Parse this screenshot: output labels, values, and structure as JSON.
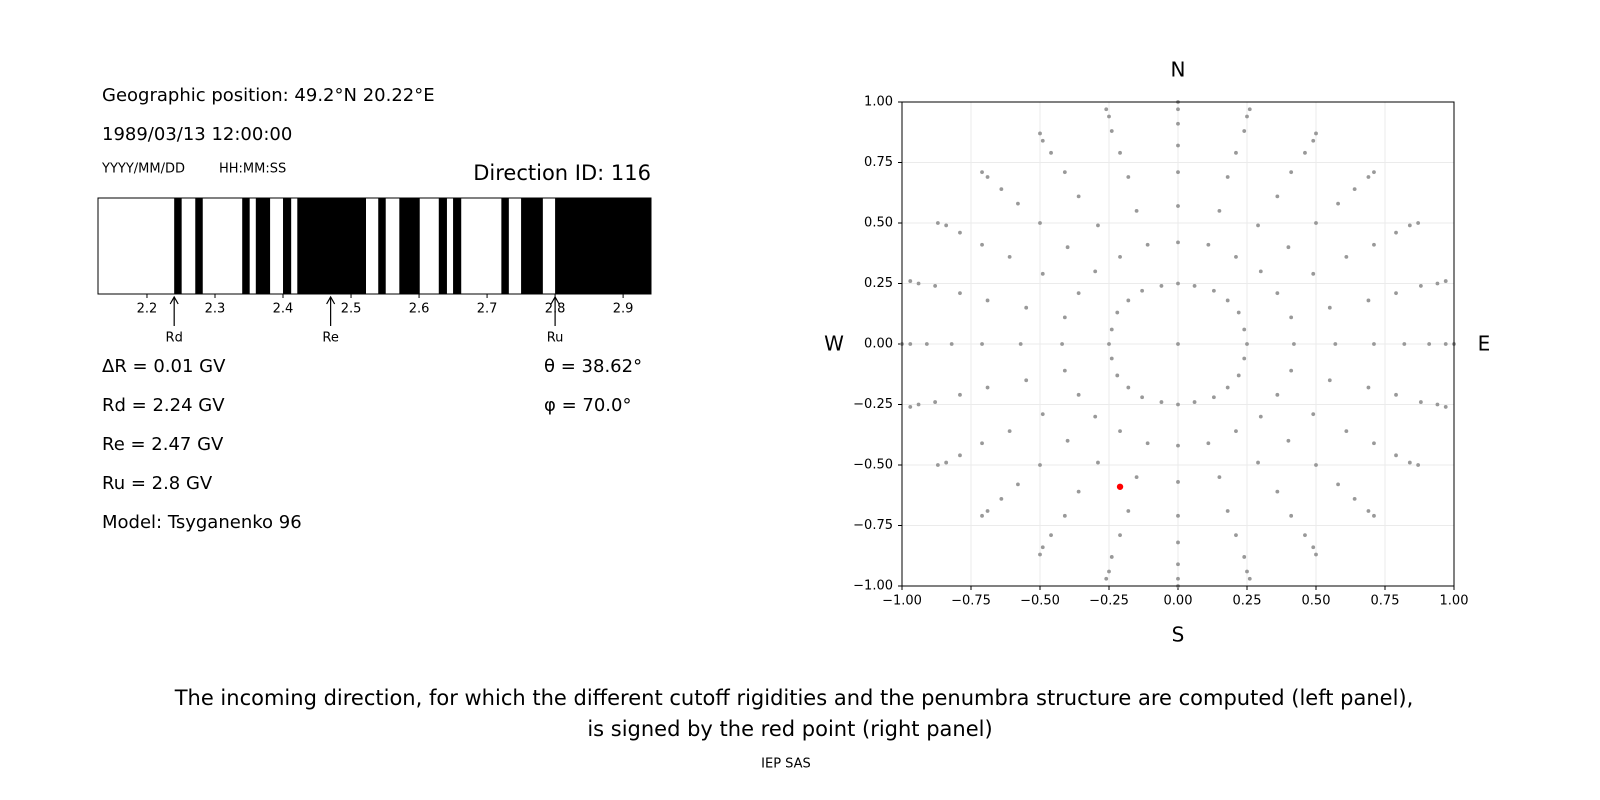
{
  "header": {
    "position": "Geographic position: 49.2°N 20.22°E",
    "datetime": "1989/03/13 12:00:00",
    "date_format": "YYYY/MM/DD",
    "time_format": "HH:MM:SS",
    "direction": "Direction ID: 116"
  },
  "parameters": {
    "delta_r": "ΔR = 0.01 GV",
    "rd": "Rd = 2.24 GV",
    "re": "Re = 2.47 GV",
    "ru": "Ru = 2.8 GV",
    "model": "Model: Tsyganenko 96",
    "theta": "θ = 38.62°",
    "phi": "φ = 70.0°"
  },
  "chart_data": [
    {
      "type": "penumbra",
      "xlim": [
        2.128,
        2.941
      ],
      "xticks": [
        2.2,
        2.3,
        2.4,
        2.5,
        2.6,
        2.7,
        2.8,
        2.9
      ],
      "color": "#000000",
      "bands": [
        [
          2.24,
          2.251
        ],
        [
          2.271,
          2.282
        ],
        [
          2.34,
          2.351
        ],
        [
          2.36,
          2.381
        ],
        [
          2.4,
          2.412
        ],
        [
          2.421,
          2.522
        ],
        [
          2.54,
          2.551
        ],
        [
          2.571,
          2.601
        ],
        [
          2.629,
          2.641
        ],
        [
          2.65,
          2.662
        ],
        [
          2.721,
          2.732
        ],
        [
          2.75,
          2.782
        ],
        [
          2.8,
          2.941
        ]
      ],
      "markers": [
        {
          "label": "Rd",
          "value": 2.24
        },
        {
          "label": "Re",
          "value": 2.47
        },
        {
          "label": "Ru",
          "value": 2.8
        }
      ]
    },
    {
      "type": "scatter",
      "xlim": [
        -1,
        1
      ],
      "ylim": [
        -1,
        1
      ],
      "grid": true,
      "xticks": [
        {
          "value": -1,
          "label": "−1.00"
        },
        {
          "value": -0.75,
          "label": "−0.75"
        },
        {
          "value": -0.5,
          "label": "−0.50"
        },
        {
          "value": -0.25,
          "label": "−0.25"
        },
        {
          "value": 0,
          "label": "0.00"
        },
        {
          "value": 0.25,
          "label": "0.25"
        },
        {
          "value": 0.5,
          "label": "0.50"
        },
        {
          "value": 0.75,
          "label": "0.75"
        },
        {
          "value": 1,
          "label": "1.00"
        }
      ],
      "yticks": [
        {
          "value": -1,
          "label": "−1.00"
        },
        {
          "value": -0.75,
          "label": "−0.75"
        },
        {
          "value": -0.5,
          "label": "−0.50"
        },
        {
          "value": -0.25,
          "label": "−0.25"
        },
        {
          "value": 0,
          "label": "0.00"
        },
        {
          "value": 0.25,
          "label": "0.25"
        },
        {
          "value": 0.5,
          "label": "0.50"
        },
        {
          "value": 0.75,
          "label": "0.75"
        },
        {
          "value": 1,
          "label": "1.00"
        }
      ],
      "compass": {
        "top": "N",
        "bottom": "S",
        "left": "W",
        "right": "E"
      },
      "series": [
        {
          "color": "#999999",
          "x": [
            0,
            0.25,
            0.24,
            0.22,
            0.18,
            0.13,
            0.06,
            0,
            -0.06,
            -0.13,
            -0.18,
            -0.22,
            -0.24,
            -0.25,
            -0.24,
            -0.22,
            -0.18,
            -0.13,
            -0.06,
            0,
            0.06,
            0.13,
            0.18,
            0.22,
            0.24,
            0.42,
            0.57,
            0.71,
            0.82,
            0.91,
            0.97,
            1,
            0.41,
            0.55,
            0.69,
            0.79,
            0.88,
            0.94,
            0.97,
            0.36,
            0.49,
            0.61,
            0.71,
            0.79,
            0.84,
            0.87,
            0.3,
            0.4,
            0.5,
            0.58,
            0.64,
            0.69,
            0.71,
            0.21,
            0.29,
            0.36,
            0.41,
            0.46,
            0.49,
            0.5,
            0.11,
            0.15,
            0.18,
            0.21,
            0.24,
            0.25,
            0.26,
            0,
            0,
            0,
            0,
            0,
            0,
            0,
            -0.11,
            -0.15,
            -0.18,
            -0.21,
            -0.24,
            -0.25,
            -0.26,
            -0.21,
            -0.29,
            -0.36,
            -0.41,
            -0.46,
            -0.49,
            -0.5,
            -0.3,
            -0.4,
            -0.5,
            -0.58,
            -0.64,
            -0.69,
            -0.71,
            -0.36,
            -0.49,
            -0.61,
            -0.71,
            -0.79,
            -0.84,
            -0.87,
            -0.41,
            -0.55,
            -0.69,
            -0.79,
            -0.88,
            -0.94,
            -0.97,
            -0.42,
            -0.57,
            -0.71,
            -0.82,
            -0.91,
            -0.97,
            -1,
            -0.41,
            -0.55,
            -0.69,
            -0.79,
            -0.88,
            -0.94,
            -0.97,
            -0.36,
            -0.49,
            -0.61,
            -0.71,
            -0.79,
            -0.84,
            -0.87,
            -0.3,
            -0.4,
            -0.5,
            -0.58,
            -0.64,
            -0.69,
            -0.71,
            -0.21,
            -0.29,
            -0.36,
            -0.41,
            -0.46,
            -0.49,
            -0.5,
            -0.11,
            -0.15,
            -0.18,
            -0.21,
            -0.24,
            -0.25,
            -0.26,
            0,
            0,
            0,
            0,
            0,
            0,
            0,
            0.11,
            0.15,
            0.18,
            0.21,
            0.24,
            0.25,
            0.26,
            0.21,
            0.29,
            0.36,
            0.41,
            0.46,
            0.49,
            0.5,
            0.3,
            0.4,
            0.5,
            0.58,
            0.64,
            0.69,
            0.71,
            0.36,
            0.49,
            0.61,
            0.71,
            0.79,
            0.84,
            0.87,
            0.41,
            0.55,
            0.69,
            0.79,
            0.88,
            0.94,
            0.97
          ],
          "values": [
            0,
            0,
            0.06,
            0.13,
            0.18,
            0.22,
            0.24,
            0.25,
            0.24,
            0.22,
            0.18,
            0.13,
            0.06,
            0,
            -0.06,
            -0.13,
            -0.18,
            -0.22,
            -0.24,
            -0.25,
            -0.24,
            -0.22,
            -0.18,
            -0.13,
            -0.06,
            0,
            0,
            0,
            0,
            0,
            0,
            0,
            0.11,
            0.15,
            0.18,
            0.21,
            0.24,
            0.25,
            0.26,
            0.21,
            0.29,
            0.36,
            0.41,
            0.46,
            0.49,
            0.5,
            0.3,
            0.4,
            0.5,
            0.58,
            0.64,
            0.69,
            0.71,
            0.36,
            0.49,
            0.61,
            0.71,
            0.79,
            0.84,
            0.87,
            0.41,
            0.55,
            0.69,
            0.79,
            0.88,
            0.94,
            0.97,
            0.42,
            0.57,
            0.71,
            0.82,
            0.91,
            0.97,
            1,
            0.41,
            0.55,
            0.69,
            0.79,
            0.88,
            0.94,
            0.97,
            0.36,
            0.49,
            0.61,
            0.71,
            0.79,
            0.84,
            0.87,
            0.3,
            0.4,
            0.5,
            0.58,
            0.64,
            0.69,
            0.71,
            0.21,
            0.29,
            0.36,
            0.41,
            0.46,
            0.49,
            0.5,
            0.11,
            0.15,
            0.18,
            0.21,
            0.24,
            0.25,
            0.26,
            0,
            0,
            0,
            0,
            0,
            0,
            0,
            -0.11,
            -0.15,
            -0.18,
            -0.21,
            -0.24,
            -0.25,
            -0.26,
            -0.21,
            -0.29,
            -0.36,
            -0.41,
            -0.46,
            -0.49,
            -0.5,
            -0.3,
            -0.4,
            -0.5,
            -0.58,
            -0.64,
            -0.69,
            -0.71,
            -0.36,
            -0.49,
            -0.61,
            -0.71,
            -0.79,
            -0.84,
            -0.87,
            -0.41,
            -0.55,
            -0.69,
            -0.79,
            -0.88,
            -0.94,
            -0.97,
            -0.42,
            -0.57,
            -0.71,
            -0.82,
            -0.91,
            -0.97,
            -1,
            -0.41,
            -0.55,
            -0.69,
            -0.79,
            -0.88,
            -0.94,
            -0.97,
            -0.36,
            -0.49,
            -0.61,
            -0.71,
            -0.79,
            -0.84,
            -0.87,
            -0.3,
            -0.4,
            -0.5,
            -0.58,
            -0.64,
            -0.69,
            -0.71,
            -0.21,
            -0.29,
            -0.36,
            -0.41,
            -0.46,
            -0.49,
            -0.5,
            -0.11,
            -0.15,
            -0.18,
            -0.21,
            -0.24,
            -0.25,
            -0.26
          ]
        },
        {
          "color": "#ff0000",
          "x": [
            -0.21
          ],
          "values": [
            -0.59
          ]
        }
      ]
    }
  ],
  "caption": [
    "The incoming direction, for which the different cutoff rigidities and the penumbra structure are computed (left panel),",
    "is signed by the red point (right panel)"
  ],
  "footer": "IEP SAS"
}
